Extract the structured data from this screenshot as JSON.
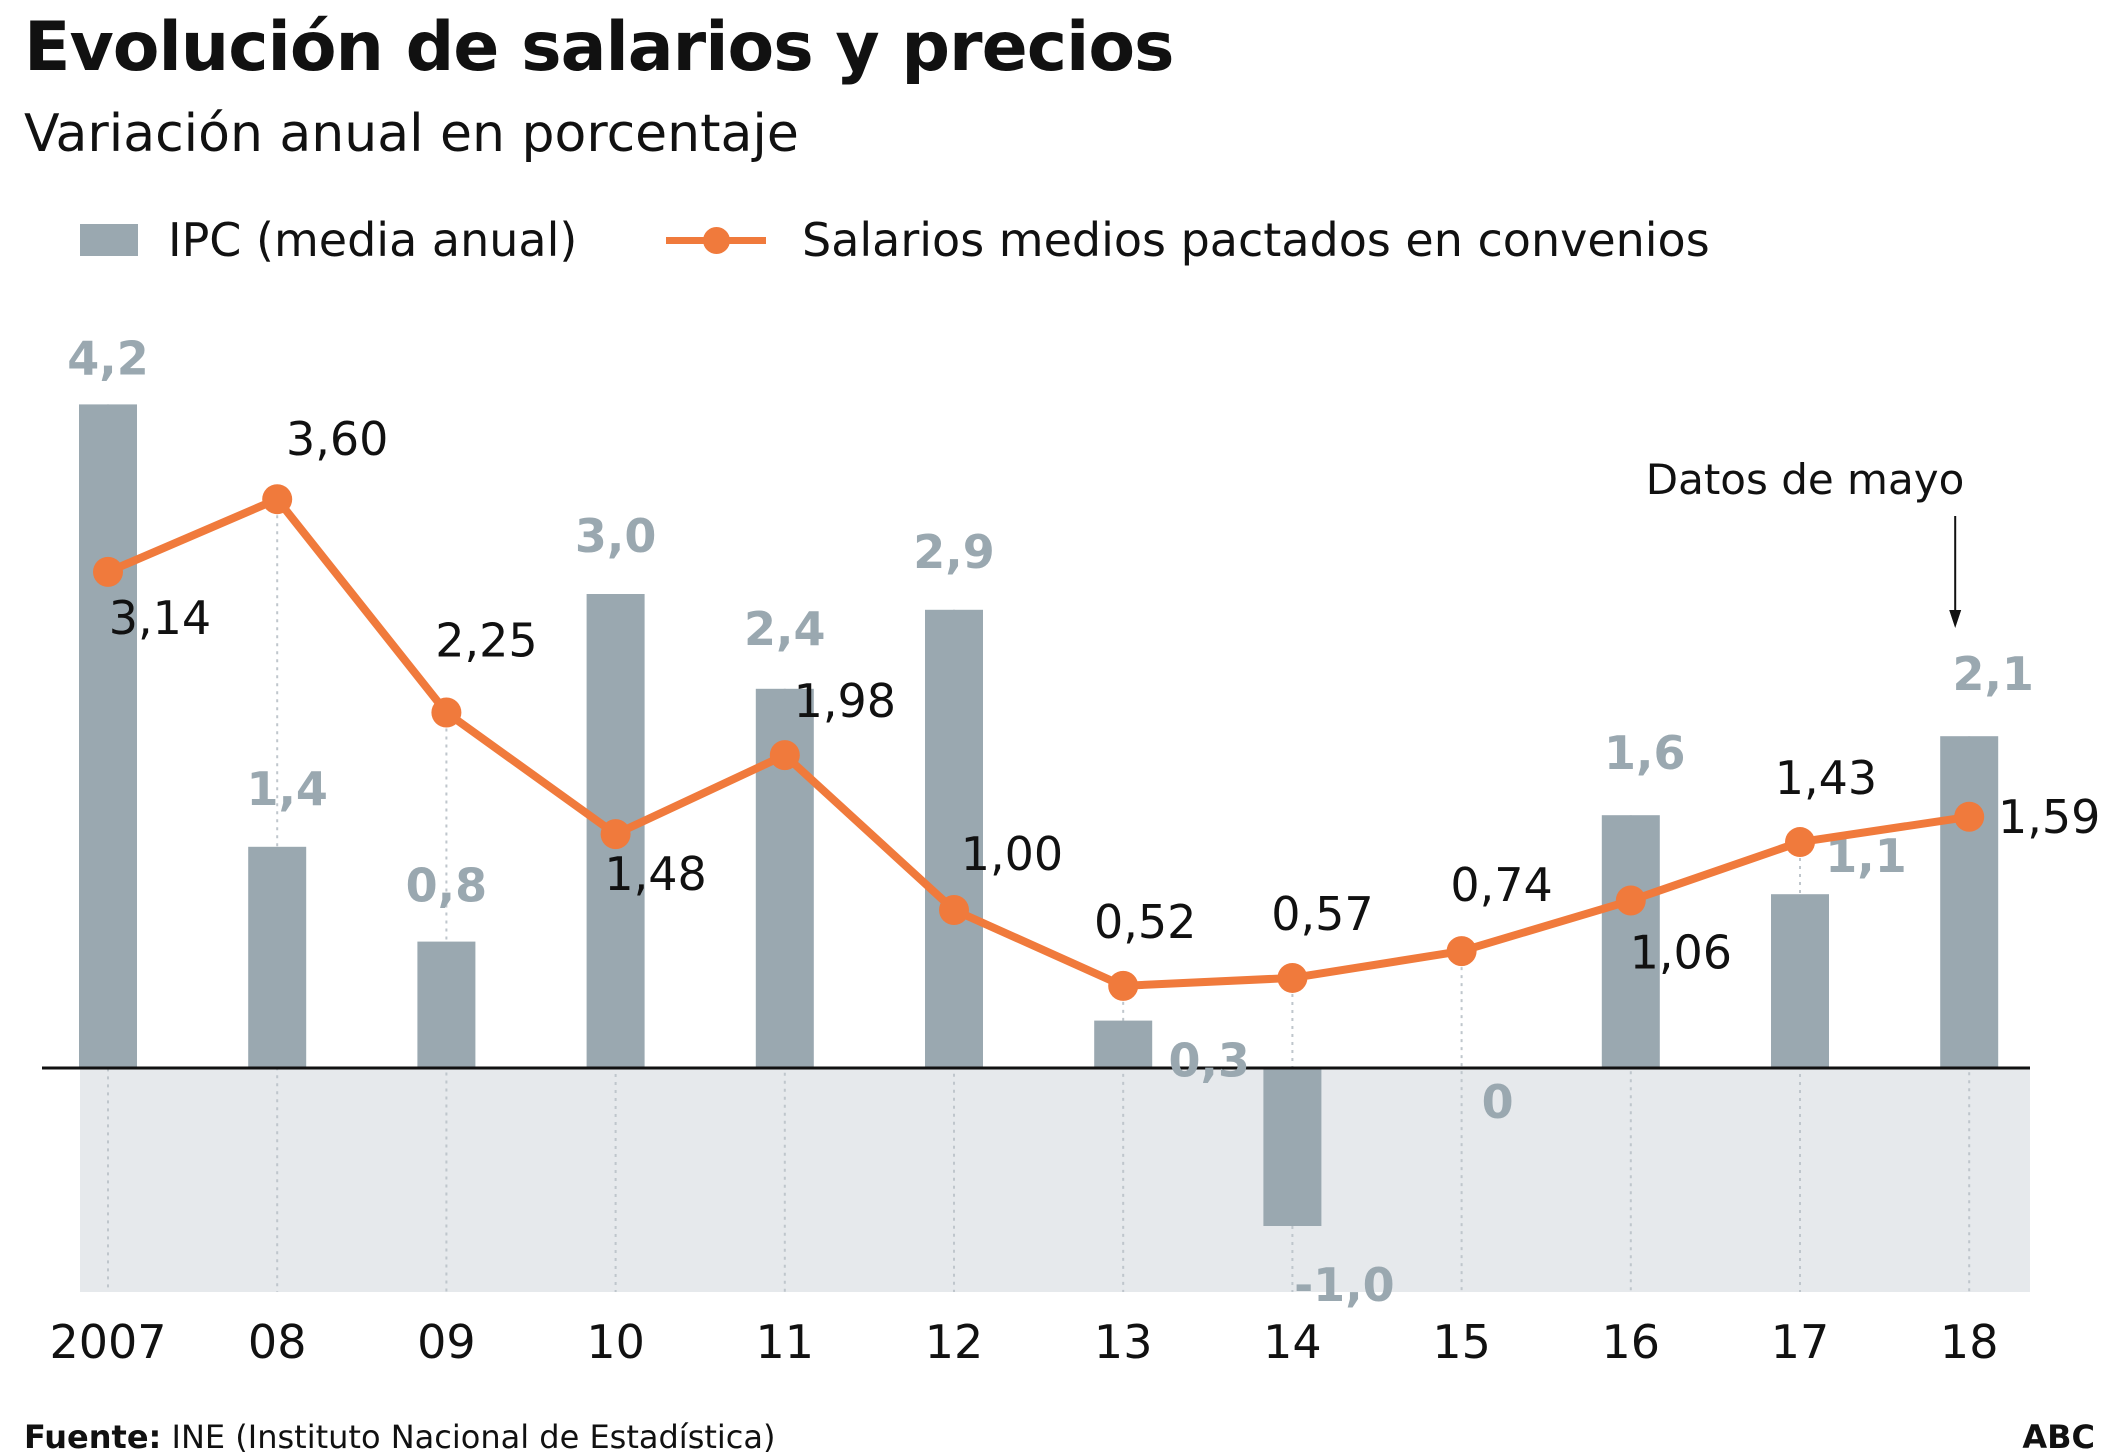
{
  "colors": {
    "bar": "#9aa8b0",
    "line": "#f07a3c",
    "shade": "#e6e9ec",
    "bar_label": "#9aa8b0",
    "text": "#111111"
  },
  "header": {
    "title": "Evolución de salarios y precios",
    "subtitle": "Variación anual en porcentaje"
  },
  "legend": {
    "bars_label": "IPC (media anual)",
    "line_label": "Salarios medios pactados en convenios"
  },
  "annotation": {
    "text": "Datos de mayo"
  },
  "footer": {
    "source_label": "Fuente:",
    "source_text": " INE (Instituto Nacional de Estadística)",
    "brand": "ABC"
  },
  "chart_data": {
    "type": "bar",
    "categories": [
      "2007",
      "08",
      "09",
      "10",
      "11",
      "12",
      "13",
      "14",
      "15",
      "16",
      "17",
      "18"
    ],
    "series": [
      {
        "name": "IPC (media anual)",
        "type": "bar",
        "values": [
          4.2,
          1.4,
          0.8,
          3.0,
          2.4,
          2.9,
          0.3,
          -1.0,
          0,
          1.6,
          1.1,
          2.1
        ],
        "labels": [
          "4,2",
          "1,4",
          "0,8",
          "3,0",
          "2,4",
          "2,9",
          "0,3",
          "-1,0",
          "0",
          "1,6",
          "1,1",
          "2,1"
        ]
      },
      {
        "name": "Salarios medios pactados en convenios",
        "type": "line",
        "values": [
          3.14,
          3.6,
          2.25,
          1.48,
          1.98,
          1.0,
          0.52,
          0.57,
          0.74,
          1.06,
          1.43,
          1.59
        ],
        "labels": [
          "3,14",
          "3,60",
          "2,25",
          "1,48",
          "1,98",
          "1,00",
          "0,52",
          "0,57",
          "0,74",
          "1,06",
          "1,43",
          "1,59"
        ]
      }
    ],
    "ylim": [
      -1.5,
      4.2
    ],
    "grid": false,
    "legend_position": "top-left"
  }
}
